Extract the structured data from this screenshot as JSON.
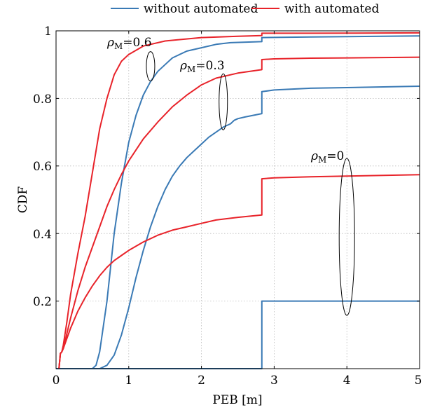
{
  "chart_data": {
    "type": "line",
    "xlabel": "PEB [m]",
    "ylabel": "CDF",
    "xlim": [
      0,
      5
    ],
    "ylim": [
      0,
      1
    ],
    "xticks": [
      "0",
      "1",
      "2",
      "3",
      "4",
      "5"
    ],
    "yticks": [
      "0.2",
      "0.4",
      "0.6",
      "0.8",
      "1"
    ],
    "grid": true,
    "legend_position": "top-center",
    "legend": [
      {
        "name": "without automated",
        "color": "#3a7ab5"
      },
      {
        "name": "with automated",
        "color": "#e8232a"
      }
    ],
    "annotations": [
      {
        "symbol": "ρ",
        "subscript": "M",
        "value": "=0.6"
      },
      {
        "symbol": "ρ",
        "subscript": "M",
        "value": "=0.3"
      },
      {
        "symbol": "ρ",
        "subscript": "M",
        "value": "=0"
      }
    ],
    "series": [
      {
        "group": "without automated",
        "rho": "0.6",
        "color": "#3a7ab5",
        "x": [
          0,
          0.5,
          0.55,
          0.6,
          0.7,
          0.8,
          0.9,
          1.0,
          1.1,
          1.2,
          1.3,
          1.4,
          1.5,
          1.6,
          1.8,
          2.0,
          2.2,
          2.4,
          2.83,
          2.83,
          3.5,
          5.0
        ],
        "y": [
          0,
          0,
          0.01,
          0.05,
          0.2,
          0.4,
          0.55,
          0.67,
          0.75,
          0.81,
          0.85,
          0.88,
          0.9,
          0.92,
          0.94,
          0.95,
          0.96,
          0.965,
          0.968,
          0.98,
          0.982,
          0.985
        ]
      },
      {
        "group": "without automated",
        "rho": "0.3",
        "color": "#3a7ab5",
        "x": [
          0,
          0.6,
          0.65,
          0.7,
          0.8,
          0.9,
          1.0,
          1.1,
          1.2,
          1.3,
          1.4,
          1.5,
          1.6,
          1.7,
          1.8,
          1.9,
          2.0,
          2.1,
          2.2,
          2.3,
          2.4,
          2.45,
          2.5,
          2.6,
          2.83,
          2.83,
          3.0,
          3.5,
          4.0,
          4.5,
          5.0
        ],
        "y": [
          0,
          0,
          0.005,
          0.01,
          0.04,
          0.1,
          0.18,
          0.27,
          0.35,
          0.42,
          0.48,
          0.53,
          0.57,
          0.6,
          0.625,
          0.645,
          0.665,
          0.685,
          0.7,
          0.715,
          0.725,
          0.735,
          0.74,
          0.745,
          0.755,
          0.82,
          0.825,
          0.83,
          0.832,
          0.834,
          0.836
        ]
      },
      {
        "group": "without automated",
        "rho": "0",
        "color": "#3a7ab5",
        "x": [
          0,
          2.83,
          2.83,
          5.0
        ],
        "y": [
          0,
          0,
          0.2,
          0.2
        ]
      },
      {
        "group": "with automated",
        "rho": "0.6",
        "color": "#e8232a",
        "x": [
          0.04,
          0.06,
          0.08,
          0.1,
          0.15,
          0.2,
          0.3,
          0.4,
          0.5,
          0.6,
          0.7,
          0.8,
          0.9,
          1.0,
          1.2,
          1.5,
          2.0,
          2.5,
          2.83,
          2.83,
          3.5,
          5.0
        ],
        "y": [
          0,
          0.045,
          0.05,
          0.07,
          0.14,
          0.22,
          0.34,
          0.45,
          0.58,
          0.71,
          0.8,
          0.87,
          0.91,
          0.93,
          0.955,
          0.97,
          0.98,
          0.984,
          0.986,
          0.993,
          0.993,
          0.994
        ]
      },
      {
        "group": "with automated",
        "rho": "0.3",
        "color": "#e8232a",
        "x": [
          0.04,
          0.06,
          0.08,
          0.1,
          0.2,
          0.3,
          0.4,
          0.5,
          0.6,
          0.7,
          0.8,
          0.9,
          1.0,
          1.2,
          1.4,
          1.6,
          1.8,
          2.0,
          2.2,
          2.5,
          2.83,
          2.83,
          3.0,
          3.5,
          4.0,
          4.5,
          5.0
        ],
        "y": [
          0,
          0.045,
          0.05,
          0.06,
          0.15,
          0.23,
          0.3,
          0.36,
          0.42,
          0.48,
          0.53,
          0.575,
          0.615,
          0.68,
          0.73,
          0.775,
          0.81,
          0.84,
          0.86,
          0.875,
          0.885,
          0.915,
          0.917,
          0.919,
          0.92,
          0.921,
          0.922
        ]
      },
      {
        "group": "with automated",
        "rho": "0",
        "color": "#e8232a",
        "x": [
          0.04,
          0.06,
          0.08,
          0.1,
          0.2,
          0.3,
          0.4,
          0.5,
          0.6,
          0.7,
          0.8,
          0.9,
          1.0,
          1.2,
          1.4,
          1.6,
          1.8,
          2.0,
          2.2,
          2.5,
          2.83,
          2.83,
          3.0,
          3.5,
          4.0,
          4.5,
          5.0
        ],
        "y": [
          0,
          0.045,
          0.05,
          0.06,
          0.12,
          0.17,
          0.21,
          0.245,
          0.275,
          0.3,
          0.32,
          0.335,
          0.35,
          0.375,
          0.395,
          0.41,
          0.42,
          0.43,
          0.44,
          0.448,
          0.455,
          0.562,
          0.565,
          0.568,
          0.57,
          0.572,
          0.574
        ]
      }
    ]
  }
}
